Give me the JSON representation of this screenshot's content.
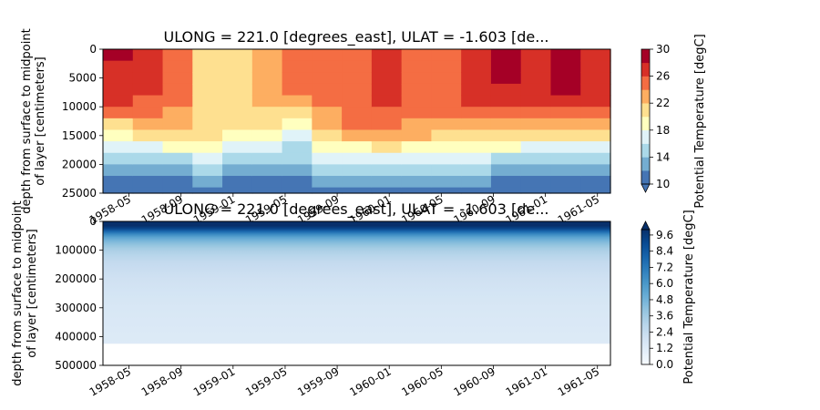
{
  "chart_data": [
    {
      "type": "heatmap",
      "title": "ULONG = 221.0 [degrees_east], ULAT = -1.603 [de...",
      "ylabel": [
        "depth from surface to midpoint",
        "of layer [centimeters]"
      ],
      "y_inverted": true,
      "ylim": [
        25000,
        0
      ],
      "yticks": [
        "0",
        "5000",
        "10000",
        "15000",
        "20000",
        "25000"
      ],
      "xticks": [
        "1958-05",
        "1958-09",
        "1959-01",
        "1959-05",
        "1959-09",
        "1960-01",
        "1960-05",
        "1960-09",
        "1961-01",
        "1961-05"
      ],
      "xlim_months": [
        "1958-03",
        "1961-06"
      ],
      "colorbar": {
        "label": "Potential Temperature [degC]",
        "ticks": [
          "10",
          "14",
          "18",
          "22",
          "26",
          "30"
        ],
        "levels": [
          10,
          12,
          14,
          16,
          18,
          20,
          22,
          24,
          26,
          28,
          30
        ],
        "colors": [
          "#4575b4",
          "#74add1",
          "#abd9e9",
          "#e0f3f8",
          "#ffffbf",
          "#fee090",
          "#fdae61",
          "#f46d43",
          "#d73027",
          "#a50026"
        ],
        "extend": "min"
      },
      "depth_levels": [
        1000,
        3000,
        5000,
        7000,
        9000,
        11000,
        13000,
        15000,
        17000,
        19000,
        21000,
        23000,
        25000
      ],
      "temperature_columns": [
        [
          28.0,
          27.9,
          27.8,
          27.6,
          27.0,
          24.0,
          21.0,
          19.5,
          16.5,
          14.5,
          13.0,
          11.8,
          11.0
        ],
        [
          27.0,
          26.9,
          26.8,
          26.5,
          25.5,
          24.0,
          22.0,
          20.5,
          17.0,
          14.5,
          13.0,
          11.8,
          11.0
        ],
        [
          24.5,
          24.4,
          24.3,
          24.2,
          24.0,
          23.5,
          22.5,
          20.5,
          18.0,
          15.0,
          13.0,
          11.8,
          11.0
        ],
        [
          21.5,
          21.4,
          21.4,
          21.3,
          21.2,
          21.0,
          21.0,
          20.5,
          18.5,
          16.0,
          14.0,
          12.0,
          11.0
        ],
        [
          21.0,
          21.0,
          21.0,
          20.9,
          20.8,
          20.7,
          20.5,
          19.5,
          17.5,
          15.0,
          13.0,
          11.5,
          10.8
        ],
        [
          22.5,
          22.4,
          22.3,
          22.2,
          22.0,
          21.5,
          20.5,
          19.0,
          16.5,
          14.5,
          13.0,
          11.5,
          10.8
        ],
        [
          25.5,
          25.4,
          25.3,
          24.5,
          23.0,
          21.5,
          19.5,
          17.5,
          15.5,
          14.0,
          12.8,
          11.5,
          10.8
        ],
        [
          25.0,
          24.8,
          24.6,
          24.4,
          24.2,
          23.8,
          23.0,
          21.5,
          18.5,
          16.0,
          14.0,
          12.0,
          11.0
        ],
        [
          25.8,
          25.7,
          25.6,
          25.4,
          25.2,
          24.8,
          24.0,
          22.5,
          19.5,
          16.5,
          14.0,
          12.0,
          11.0
        ],
        [
          26.0,
          26.0,
          26.0,
          26.0,
          26.0,
          25.5,
          24.5,
          23.0,
          20.0,
          17.0,
          14.5,
          12.3,
          11.2
        ],
        [
          25.0,
          25.0,
          25.0,
          25.0,
          25.0,
          24.5,
          23.5,
          22.0,
          19.0,
          16.0,
          14.0,
          12.0,
          11.0
        ],
        [
          24.5,
          24.5,
          24.5,
          24.5,
          24.5,
          24.0,
          23.0,
          21.5,
          18.5,
          16.0,
          14.0,
          12.0,
          11.0
        ],
        [
          26.5,
          26.5,
          26.5,
          26.5,
          26.0,
          25.0,
          23.5,
          21.5,
          18.5,
          16.5,
          14.0,
          12.0,
          11.0
        ],
        [
          28.0,
          28.0,
          28.0,
          27.8,
          27.0,
          25.5,
          23.5,
          21.0,
          18.0,
          15.5,
          13.5,
          11.8,
          11.0
        ],
        [
          27.5,
          27.5,
          27.5,
          27.4,
          27.0,
          25.5,
          23.0,
          20.5,
          17.5,
          15.0,
          13.0,
          11.8,
          11.0
        ],
        [
          28.0,
          28.0,
          28.0,
          28.0,
          27.5,
          25.5,
          23.0,
          20.0,
          17.0,
          14.5,
          12.8,
          11.5,
          10.8
        ],
        [
          27.8,
          27.8,
          27.8,
          27.5,
          26.5,
          25.0,
          22.5,
          20.0,
          17.0,
          14.5,
          13.0,
          11.8,
          11.0
        ]
      ]
    },
    {
      "type": "heatmap",
      "title": "ULONG = 221.0 [degrees_east], ULAT = -1.603 [de...",
      "ylabel": [
        "depth from surface to midpoint",
        "of layer [centimeters]"
      ],
      "y_inverted": true,
      "ylim": [
        500000,
        0
      ],
      "yticks": [
        "0",
        "100000",
        "200000",
        "300000",
        "400000",
        "500000"
      ],
      "xticks": [
        "1958-05",
        "1958-09",
        "1959-01",
        "1959-05",
        "1959-09",
        "1960-01",
        "1960-05",
        "1960-09",
        "1961-01",
        "1961-05"
      ],
      "xlim_months": [
        "1958-03",
        "1961-06"
      ],
      "data_max_depth": 425000,
      "colorbar": {
        "label": "Potential Temperature [degC]",
        "ticks": [
          "0.0",
          "1.2",
          "2.4",
          "3.6",
          "4.8",
          "6.0",
          "7.2",
          "8.4",
          "9.6"
        ],
        "vmin": 0.0,
        "vmax": 10.0,
        "colormap": "Blues",
        "extend": "max"
      },
      "depth_levels": [
        5000,
        15000,
        25000,
        35000,
        45000,
        55000,
        65000,
        75000,
        85000,
        95000,
        105000,
        120000,
        140000,
        160000,
        180000,
        200000,
        225000,
        250000,
        275000,
        300000,
        325000,
        350000,
        375000,
        400000,
        425000
      ],
      "temperature_profile": [
        11.5,
        10.8,
        9.2,
        7.8,
        6.5,
        5.5,
        4.8,
        4.3,
        3.9,
        3.5,
        3.2,
        2.9,
        2.6,
        2.4,
        2.2,
        2.0,
        1.85,
        1.75,
        1.65,
        1.55,
        1.5,
        1.45,
        1.4,
        1.35,
        1.3
      ]
    }
  ]
}
